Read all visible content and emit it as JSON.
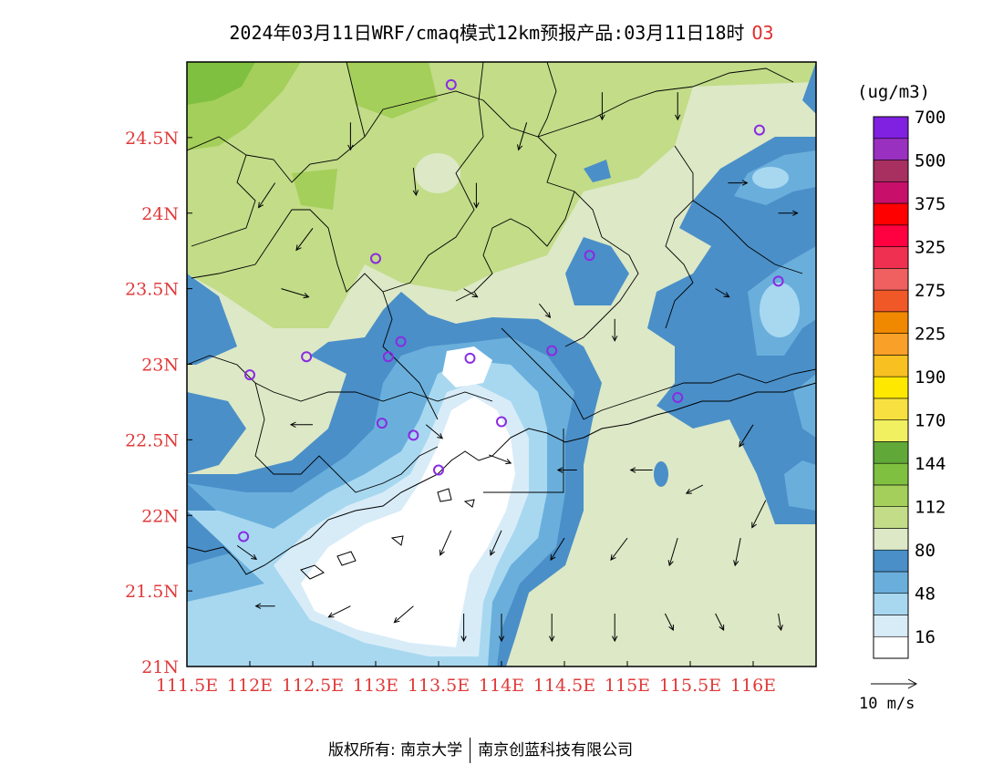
{
  "title": {
    "main": "2024年03月11日WRF/cmaq模式12km预报产品:03月11日18时",
    "species": "O3"
  },
  "map": {
    "lon_range": [
      111.5,
      116.5
    ],
    "lat_range": [
      21.0,
      25.0
    ],
    "lon_ticks": [
      "111.5E",
      "112E",
      "112.5E",
      "113E",
      "113.5E",
      "114E",
      "114.5E",
      "115E",
      "115.5E",
      "116E"
    ],
    "lat_ticks": [
      "21N",
      "21.5N",
      "22N",
      "22.5N",
      "23N",
      "23.5N",
      "24N",
      "24.5N"
    ],
    "stations": [
      {
        "lon": 113.6,
        "lat": 24.85
      },
      {
        "lon": 116.05,
        "lat": 24.55
      },
      {
        "lon": 113.0,
        "lat": 23.7
      },
      {
        "lon": 114.7,
        "lat": 23.72
      },
      {
        "lon": 116.2,
        "lat": 23.55
      },
      {
        "lon": 113.2,
        "lat": 23.15
      },
      {
        "lon": 112.45,
        "lat": 23.05
      },
      {
        "lon": 113.1,
        "lat": 23.05
      },
      {
        "lon": 113.75,
        "lat": 23.04
      },
      {
        "lon": 114.4,
        "lat": 23.09
      },
      {
        "lon": 112.0,
        "lat": 22.93
      },
      {
        "lon": 115.4,
        "lat": 22.78
      },
      {
        "lon": 113.05,
        "lat": 22.61
      },
      {
        "lon": 113.3,
        "lat": 22.53
      },
      {
        "lon": 114.0,
        "lat": 22.62
      },
      {
        "lon": 113.5,
        "lat": 22.3
      },
      {
        "lon": 111.95,
        "lat": 21.86
      }
    ],
    "wind_vectors": [
      {
        "lon": 112.25,
        "lat": 23.5,
        "u": 1.0,
        "v": -0.3
      },
      {
        "lon": 112.5,
        "lat": 23.9,
        "u": -0.6,
        "v": -0.8
      },
      {
        "lon": 112.2,
        "lat": 24.2,
        "u": -0.6,
        "v": -0.9
      },
      {
        "lon": 112.8,
        "lat": 24.6,
        "u": 0.0,
        "v": -1.0
      },
      {
        "lon": 113.3,
        "lat": 24.3,
        "u": 0.1,
        "v": -1.0
      },
      {
        "lon": 113.8,
        "lat": 24.2,
        "u": 0.0,
        "v": -0.9
      },
      {
        "lon": 114.2,
        "lat": 24.6,
        "u": -0.3,
        "v": -1.0
      },
      {
        "lon": 114.8,
        "lat": 24.8,
        "u": 0.0,
        "v": -1.0
      },
      {
        "lon": 115.4,
        "lat": 24.8,
        "u": 0.0,
        "v": -1.0
      },
      {
        "lon": 115.8,
        "lat": 24.2,
        "u": 0.7,
        "v": 0.0
      },
      {
        "lon": 116.2,
        "lat": 24.0,
        "u": 0.7,
        "v": 0.0
      },
      {
        "lon": 115.7,
        "lat": 23.5,
        "u": 0.5,
        "v": -0.3
      },
      {
        "lon": 113.7,
        "lat": 23.5,
        "u": 0.5,
        "v": -0.3
      },
      {
        "lon": 114.3,
        "lat": 23.4,
        "u": 0.4,
        "v": -0.5
      },
      {
        "lon": 114.9,
        "lat": 23.3,
        "u": 0.0,
        "v": -0.8
      },
      {
        "lon": 112.5,
        "lat": 22.6,
        "u": -0.8,
        "v": 0.0
      },
      {
        "lon": 113.4,
        "lat": 22.6,
        "u": 0.6,
        "v": -0.5
      },
      {
        "lon": 113.9,
        "lat": 22.4,
        "u": 0.8,
        "v": -0.3
      },
      {
        "lon": 114.6,
        "lat": 22.3,
        "u": -0.7,
        "v": 0.0
      },
      {
        "lon": 115.2,
        "lat": 22.3,
        "u": -0.8,
        "v": 0.0
      },
      {
        "lon": 115.6,
        "lat": 22.2,
        "u": -0.6,
        "v": -0.3
      },
      {
        "lon": 116.0,
        "lat": 22.6,
        "u": -0.5,
        "v": -0.8
      },
      {
        "lon": 116.1,
        "lat": 22.1,
        "u": -0.5,
        "v": -1.0
      },
      {
        "lon": 113.6,
        "lat": 21.9,
        "u": -0.4,
        "v": -0.9
      },
      {
        "lon": 114.0,
        "lat": 21.9,
        "u": -0.4,
        "v": -0.9
      },
      {
        "lon": 114.5,
        "lat": 21.85,
        "u": -0.5,
        "v": -0.8
      },
      {
        "lon": 115.0,
        "lat": 21.85,
        "u": -0.6,
        "v": -0.8
      },
      {
        "lon": 115.4,
        "lat": 21.85,
        "u": -0.3,
        "v": -1.0
      },
      {
        "lon": 115.9,
        "lat": 21.85,
        "u": -0.2,
        "v": -1.0
      },
      {
        "lon": 112.8,
        "lat": 21.4,
        "u": -0.8,
        "v": -0.4
      },
      {
        "lon": 113.3,
        "lat": 21.4,
        "u": -0.7,
        "v": -0.6
      },
      {
        "lon": 113.7,
        "lat": 21.35,
        "u": 0.0,
        "v": -1.0
      },
      {
        "lon": 114.0,
        "lat": 21.35,
        "u": 0.0,
        "v": -1.0
      },
      {
        "lon": 114.4,
        "lat": 21.35,
        "u": 0.0,
        "v": -1.0
      },
      {
        "lon": 114.9,
        "lat": 21.35,
        "u": 0.0,
        "v": -1.0
      },
      {
        "lon": 115.3,
        "lat": 21.35,
        "u": 0.3,
        "v": -0.6
      },
      {
        "lon": 115.7,
        "lat": 21.35,
        "u": 0.3,
        "v": -0.6
      },
      {
        "lon": 116.2,
        "lat": 21.35,
        "u": 0.1,
        "v": -0.6
      },
      {
        "lon": 112.2,
        "lat": 21.4,
        "u": -0.7,
        "v": 0.0
      },
      {
        "lon": 111.9,
        "lat": 21.8,
        "u": 0.7,
        "v": -0.5
      }
    ]
  },
  "legend": {
    "unit": "(ug/m3)",
    "colors": [
      "#ffffff",
      "#d8ecf8",
      "#a8d8f0",
      "#6aafdc",
      "#4a8fc8",
      "#dde8c6",
      "#c2dc88",
      "#a4cf5a",
      "#80c040",
      "#60a838",
      "#f0f060",
      "#f8e040",
      "#ffe800",
      "#f8c020",
      "#f8a028",
      "#f08800",
      "#f05828",
      "#f06060",
      "#f03050",
      "#ff0040",
      "#ff0000",
      "#c8106a",
      "#a83060",
      "#9a30c0",
      "#8020e0"
    ],
    "labels": [
      "16",
      "48",
      "80",
      "112",
      "144",
      "170",
      "190",
      "225",
      "275",
      "325",
      "375",
      "500",
      "700"
    ],
    "wind_scale_label": "10 m/s"
  },
  "footer": {
    "copyright": "版权所有: 南京大学",
    "company": "南京创蓝科技有限公司"
  }
}
